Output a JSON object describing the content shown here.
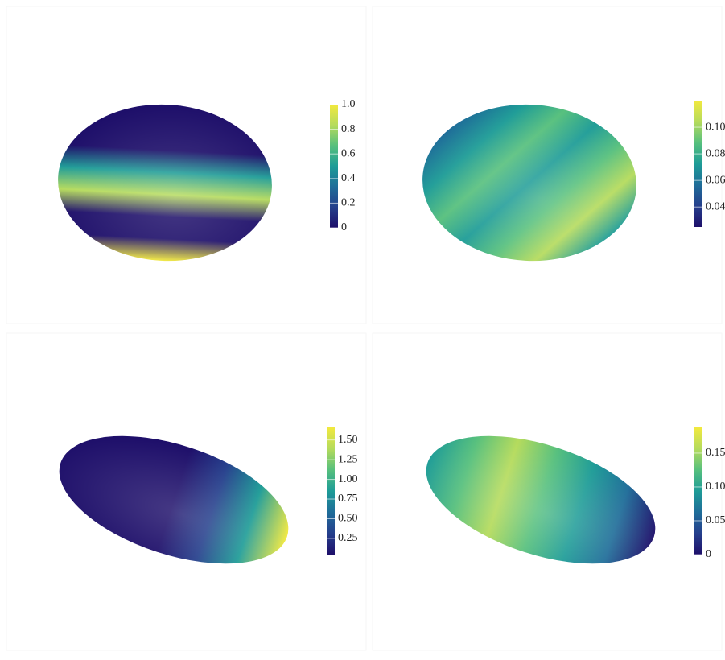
{
  "chart_data": [
    {
      "type": "surface",
      "colorscale": [
        "#1e0f6a",
        "#253f8c",
        "#1f6d99",
        "#1e9c97",
        "#57c07d",
        "#b5db5c",
        "#f2e93e"
      ],
      "clim": [
        0,
        1
      ],
      "cticks": [
        0,
        0.2,
        0.4,
        0.6,
        0.8,
        {
          "value": 1,
          "label": "1.0"
        }
      ]
    },
    {
      "type": "surface",
      "colorscale": [
        "#1e0f6a",
        "#253f8c",
        "#1f6d99",
        "#1e9c97",
        "#57c07d",
        "#b5db5c",
        "#f2e93e"
      ],
      "clim": [
        0.025,
        0.12
      ],
      "cticks": [
        0.04,
        0.06,
        0.08,
        {
          "value": 0.1,
          "label": "0.10"
        }
      ]
    },
    {
      "type": "surface",
      "colorscale": [
        "#1e0f6a",
        "#253f8c",
        "#1f6d99",
        "#1e9c97",
        "#57c07d",
        "#b5db5c",
        "#f2e93e"
      ],
      "clim": [
        0.045,
        1.66
      ],
      "cticks": [
        0.25,
        {
          "value": 0.5,
          "label": "0.50"
        },
        0.75,
        {
          "value": 1,
          "label": "1.00"
        },
        1.25,
        {
          "value": 1.5,
          "label": "1.50"
        }
      ]
    },
    {
      "type": "surface",
      "colorscale": [
        "#1e0f6a",
        "#253f8c",
        "#1f6d99",
        "#1e9c97",
        "#57c07d",
        "#b5db5c",
        "#f2e93e"
      ],
      "clim": [
        0,
        0.188
      ],
      "cticks": [
        0,
        0.05,
        {
          "value": 0.1,
          "label": "0.10"
        },
        0.15
      ]
    }
  ]
}
